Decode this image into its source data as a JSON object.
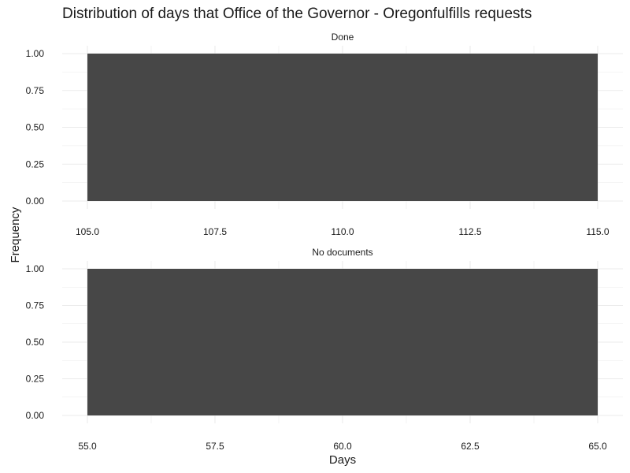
{
  "chart_data": {
    "type": "bar",
    "title": "Distribution of days that Office of the Governor - Oregonfulfills requests",
    "xlabel": "Days",
    "ylabel": "Frequency",
    "grid": true,
    "bar_color": "#474747",
    "grid_color": "#ebebeb",
    "panels": [
      {
        "strip": "Done",
        "bins": [
          {
            "x_start": 105.0,
            "x_end": 115.0,
            "count": 1
          }
        ],
        "xlim": [
          105.0,
          115.0
        ],
        "ylim": [
          0,
          1
        ],
        "x_ticks": [
          "105.0",
          "107.5",
          "110.0",
          "112.5",
          "115.0"
        ],
        "y_ticks": [
          "0.00",
          "0.25",
          "0.50",
          "0.75",
          "1.00"
        ]
      },
      {
        "strip": "No documents",
        "bins": [
          {
            "x_start": 55.0,
            "x_end": 65.0,
            "count": 1
          }
        ],
        "xlim": [
          55.0,
          65.0
        ],
        "ylim": [
          0,
          1
        ],
        "x_ticks": [
          "55.0",
          "57.5",
          "60.0",
          "62.5",
          "65.0"
        ],
        "y_ticks": [
          "0.00",
          "0.25",
          "0.50",
          "0.75",
          "1.00"
        ]
      }
    ]
  }
}
